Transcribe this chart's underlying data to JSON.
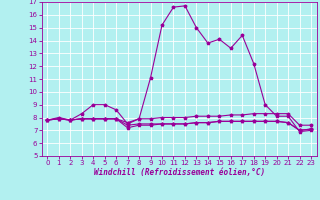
{
  "title": "",
  "xlabel": "Windchill (Refroidissement éolien,°C)",
  "background_color": "#b2f0f0",
  "line_color": "#990099",
  "grid_color": "#ffffff",
  "x": [
    0,
    1,
    2,
    3,
    4,
    5,
    6,
    7,
    8,
    9,
    10,
    11,
    12,
    13,
    14,
    15,
    16,
    17,
    18,
    19,
    20,
    21,
    22,
    23
  ],
  "line1": [
    7.8,
    8.0,
    7.8,
    8.3,
    9.0,
    9.0,
    8.6,
    7.5,
    7.9,
    11.1,
    15.2,
    16.6,
    16.7,
    15.0,
    13.8,
    14.1,
    13.4,
    14.4,
    12.2,
    9.0,
    8.1,
    8.1,
    6.9,
    7.0
  ],
  "line2": [
    7.8,
    7.9,
    7.8,
    7.9,
    7.9,
    7.9,
    7.9,
    7.6,
    7.9,
    7.9,
    8.0,
    8.0,
    8.0,
    8.1,
    8.1,
    8.1,
    8.2,
    8.2,
    8.3,
    8.3,
    8.3,
    8.3,
    7.4,
    7.4
  ],
  "line3": [
    7.8,
    7.9,
    7.8,
    7.9,
    7.9,
    7.9,
    7.9,
    7.4,
    7.5,
    7.5,
    7.5,
    7.5,
    7.5,
    7.6,
    7.6,
    7.7,
    7.7,
    7.7,
    7.7,
    7.7,
    7.7,
    7.6,
    7.0,
    7.1
  ],
  "line4": [
    7.8,
    7.9,
    7.8,
    7.9,
    7.9,
    7.9,
    7.9,
    7.2,
    7.4,
    7.4,
    7.5,
    7.5,
    7.5,
    7.6,
    7.6,
    7.7,
    7.7,
    7.7,
    7.7,
    7.7,
    7.7,
    7.6,
    7.0,
    7.1
  ],
  "ylim": [
    5,
    17
  ],
  "xlim": [
    -0.5,
    23.5
  ],
  "yticks": [
    5,
    6,
    7,
    8,
    9,
    10,
    11,
    12,
    13,
    14,
    15,
    16,
    17
  ],
  "xticks": [
    0,
    1,
    2,
    3,
    4,
    5,
    6,
    7,
    8,
    9,
    10,
    11,
    12,
    13,
    14,
    15,
    16,
    17,
    18,
    19,
    20,
    21,
    22,
    23
  ],
  "tick_fontsize": 5,
  "xlabel_fontsize": 5.5,
  "lw": 0.8,
  "markersize": 2.5
}
